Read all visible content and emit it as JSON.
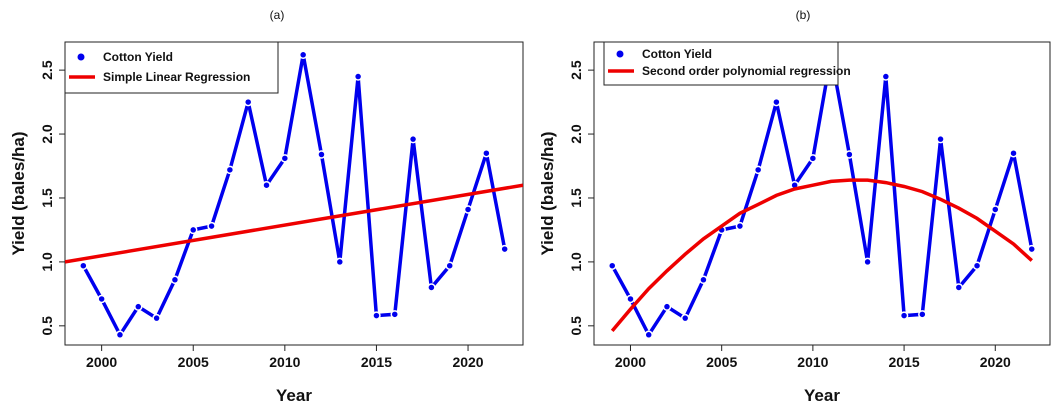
{
  "chart_data": [
    {
      "type": "line",
      "title": "(a)",
      "x_label": "Year",
      "y_label": "Yield (bales/ha)",
      "xlim": [
        1998,
        2023
      ],
      "ylim": [
        0.35,
        2.72
      ],
      "xticks": [
        2000,
        2005,
        2010,
        2015,
        2020
      ],
      "yticks": [
        0.5,
        {
          "value": 1.0,
          "label": "1.0"
        },
        1.5,
        {
          "value": 2.0,
          "label": "2.0"
        },
        2.5
      ],
      "legend": "top-left",
      "series": [
        {
          "name": "Cotton Yield",
          "color": "#0000ee",
          "marker": "point",
          "x": [
            1999,
            2000,
            2001,
            2002,
            2003,
            2004,
            2005,
            2006,
            2007,
            2008,
            2009,
            2010,
            2011,
            2012,
            2013,
            2014,
            2015,
            2016,
            2017,
            2018,
            2019,
            2020,
            2021,
            2022
          ],
          "values": [
            0.97,
            0.71,
            0.43,
            0.65,
            0.56,
            0.86,
            1.25,
            1.28,
            1.72,
            2.25,
            1.6,
            1.81,
            2.62,
            1.84,
            1.0,
            2.45,
            0.58,
            0.59,
            1.96,
            0.8,
            0.97,
            1.41,
            1.85,
            1.1
          ]
        },
        {
          "name": "Simple Linear Regression",
          "color": "#ee0000",
          "marker": "line",
          "x": [
            1998,
            2023
          ],
          "values": [
            1.0,
            1.6
          ]
        }
      ]
    },
    {
      "type": "line",
      "title": "(b)",
      "x_label": "Year",
      "y_label": "Yield (bales/ha)",
      "xlim": [
        1998,
        2023
      ],
      "ylim": [
        0.35,
        2.72
      ],
      "xticks": [
        2000,
        2005,
        2010,
        2015,
        2020
      ],
      "yticks": [
        0.5,
        {
          "value": 1.0,
          "label": "1.0"
        },
        1.5,
        {
          "value": 2.0,
          "label": "2.0"
        },
        2.5
      ],
      "legend": "top-left",
      "series": [
        {
          "name": "Cotton Yield",
          "color": "#0000ee",
          "marker": "point",
          "x": [
            1999,
            2000,
            2001,
            2002,
            2003,
            2004,
            2005,
            2006,
            2007,
            2008,
            2009,
            2010,
            2011,
            2012,
            2013,
            2014,
            2015,
            2016,
            2017,
            2018,
            2019,
            2020,
            2021,
            2022
          ],
          "values": [
            0.97,
            0.71,
            0.43,
            0.65,
            0.56,
            0.86,
            1.25,
            1.28,
            1.72,
            2.25,
            1.6,
            1.81,
            2.62,
            1.84,
            1.0,
            2.45,
            0.58,
            0.59,
            1.96,
            0.8,
            0.97,
            1.41,
            1.85,
            1.1
          ]
        },
        {
          "name": "Second order polynomial regression",
          "color": "#ee0000",
          "marker": "line",
          "x": [
            1999,
            2000,
            2001,
            2002,
            2003,
            2004,
            2005,
            2006,
            2007,
            2008,
            2009,
            2010,
            2011,
            2012,
            2013,
            2014,
            2015,
            2016,
            2017,
            2018,
            2019,
            2020,
            2021,
            2022
          ],
          "values": [
            0.46,
            0.63,
            0.79,
            0.93,
            1.06,
            1.18,
            1.28,
            1.38,
            1.45,
            1.52,
            1.57,
            1.6,
            1.63,
            1.64,
            1.64,
            1.62,
            1.59,
            1.55,
            1.49,
            1.42,
            1.34,
            1.24,
            1.14,
            1.01
          ]
        }
      ]
    }
  ]
}
